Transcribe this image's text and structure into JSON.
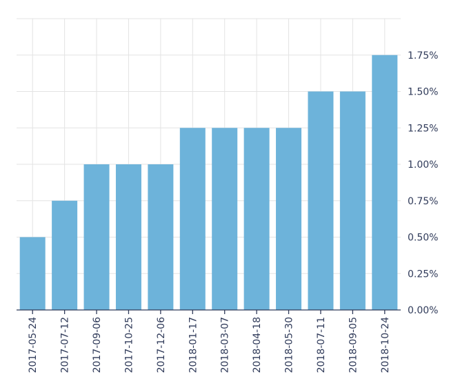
{
  "chart_data": {
    "type": "bar",
    "title": "",
    "xlabel": "",
    "ylabel": "",
    "categories": [
      "2017-05-24",
      "2017-07-12",
      "2017-09-06",
      "2017-10-25",
      "2017-12-06",
      "2018-01-17",
      "2018-03-07",
      "2018-04-18",
      "2018-05-30",
      "2018-07-11",
      "2018-09-05",
      "2018-10-24"
    ],
    "values": [
      0.5,
      0.75,
      1.0,
      1.0,
      1.0,
      1.25,
      1.25,
      1.25,
      1.25,
      1.5,
      1.5,
      1.75
    ],
    "ylim": [
      0,
      2.0
    ],
    "y_ticks": [
      "0.00%",
      "0.25%",
      "0.50%",
      "0.75%",
      "1.00%",
      "1.25%",
      "1.50%",
      "1.75%"
    ],
    "y_tick_values": [
      0,
      0.25,
      0.5,
      0.75,
      1.0,
      1.25,
      1.5,
      1.75
    ],
    "y_axis_side": "right",
    "grid": true,
    "legend": "none",
    "bar_color": "#6db3da",
    "grid_color": "#e3e3e3",
    "axis_color": "#2f3a59"
  }
}
